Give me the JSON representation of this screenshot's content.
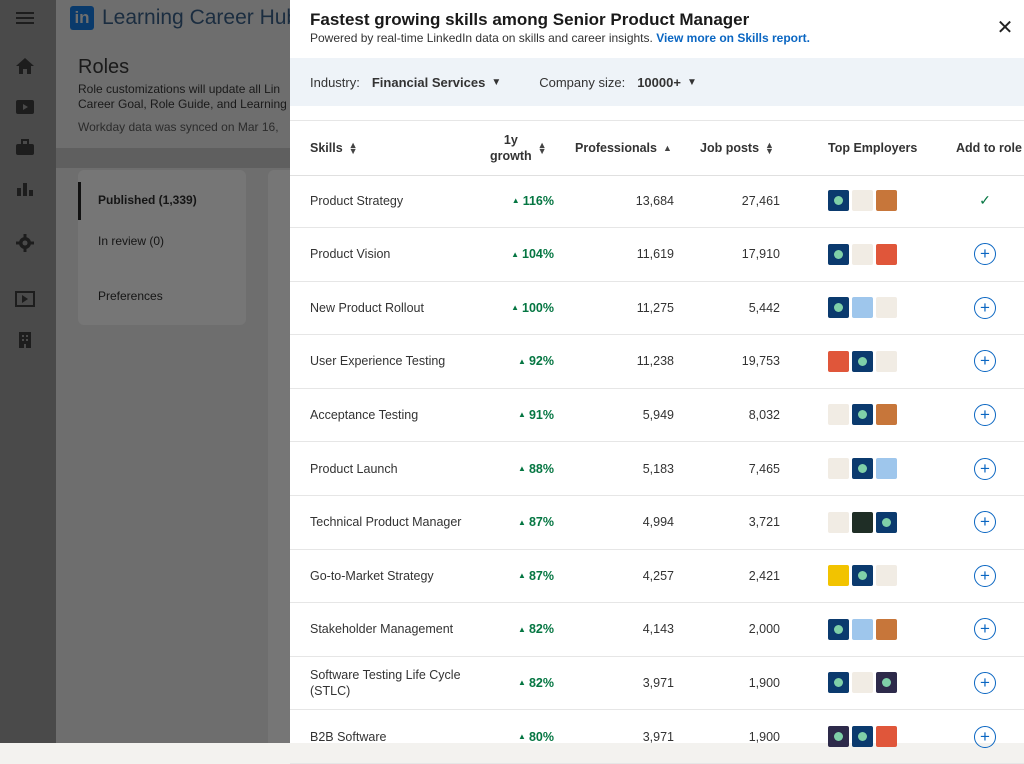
{
  "app": {
    "brand": "Learning Career Hub",
    "logo_text": "in"
  },
  "background": {
    "title": "Roles",
    "desc": "Role customizations will update all Lin Career Goal, Role Guide, and Learning",
    "sync": "Workday data was synced on Mar 16,",
    "nav": [
      {
        "label": "Published (1,339)"
      },
      {
        "label": "In review (0)"
      },
      {
        "label": "Preferences"
      }
    ]
  },
  "panel": {
    "title": "Fastest growing skills among Senior Product Manager",
    "subtitle": "Powered by real-time LinkedIn data on skills and career insights.",
    "link": "View more on Skills report.",
    "close": "✕",
    "filters": {
      "industry_label": "Industry:",
      "industry_value": "Financial Services",
      "size_label": "Company size:",
      "size_value": "10000+"
    },
    "columns": {
      "skills": "Skills",
      "growth_line1": "1y",
      "growth_line2": "growth",
      "professionals": "Professionals",
      "job_posts": "Job posts",
      "top_employers": "Top Employers",
      "add_to_role": "Add to role"
    },
    "rows": [
      {
        "skill": "Product Strategy",
        "growth": "116%",
        "professionals": "13,684",
        "job_posts": "27,461",
        "employers": [
          "navy-logo",
          "pale-logo",
          "orange-logo"
        ],
        "added": true
      },
      {
        "skill": "Product Vision",
        "growth": "104%",
        "professionals": "11,619",
        "job_posts": "17,910",
        "employers": [
          "navy-logo",
          "pale-logo",
          "red-pattern-logo"
        ],
        "added": false
      },
      {
        "skill": "New Product Rollout",
        "growth": "100%",
        "professionals": "11,275",
        "job_posts": "5,442",
        "employers": [
          "navy-logo",
          "lightblue-logo",
          "pale-logo"
        ],
        "added": false
      },
      {
        "skill": "User Experience Testing",
        "growth": "92%",
        "professionals": "11,238",
        "job_posts": "19,753",
        "employers": [
          "red-pattern-logo",
          "navy-logo",
          "pale-logo"
        ],
        "added": false
      },
      {
        "skill": "Acceptance Testing",
        "growth": "91%",
        "professionals": "5,949",
        "job_posts": "8,032",
        "employers": [
          "pale-logo",
          "navy-logo",
          "orange-logo"
        ],
        "added": false
      },
      {
        "skill": "Product Launch",
        "growth": "88%",
        "professionals": "5,183",
        "job_posts": "7,465",
        "employers": [
          "pale-logo",
          "navy-logo",
          "lightblue-logo"
        ],
        "added": false
      },
      {
        "skill": "Technical Product Manager",
        "growth": "87%",
        "professionals": "4,994",
        "job_posts": "3,721",
        "employers": [
          "pale-logo",
          "dark-green-logo",
          "navy-logo"
        ],
        "added": false
      },
      {
        "skill": "Go-to-Market Strategy",
        "growth": "87%",
        "professionals": "4,257",
        "job_posts": "2,421",
        "employers": [
          "yellow-logo",
          "navy-logo",
          "pale-logo"
        ],
        "added": false
      },
      {
        "skill": "Stakeholder Management",
        "growth": "82%",
        "professionals": "4,143",
        "job_posts": "2,000",
        "employers": [
          "navy-logo",
          "lightblue-logo",
          "orange-logo"
        ],
        "added": false
      },
      {
        "skill": "Software Testing Life Cycle (STLC)",
        "growth": "82%",
        "professionals": "3,971",
        "job_posts": "1,900",
        "employers": [
          "navy-logo",
          "pale-logo",
          "dark-purple-logo"
        ],
        "added": false
      },
      {
        "skill": "B2B Software",
        "growth": "80%",
        "professionals": "3,971",
        "job_posts": "1,900",
        "employers": [
          "dark-purple-logo",
          "navy-logo",
          "red-pattern-logo"
        ],
        "added": false
      }
    ]
  },
  "colors": {
    "accent": "#0a66c2",
    "growth": "#057642",
    "filter_bg": "#eef3f8"
  },
  "logo_colors": {
    "navy-logo": "#0b3a6e",
    "pale-logo": "#f1ece4",
    "orange-logo": "#c7763a",
    "red-pattern-logo": "#e0563a",
    "lightblue-logo": "#9ec6ec",
    "dark-green-logo": "#1f2e26",
    "yellow-logo": "#f2c300",
    "dark-purple-logo": "#2d2a4a"
  }
}
